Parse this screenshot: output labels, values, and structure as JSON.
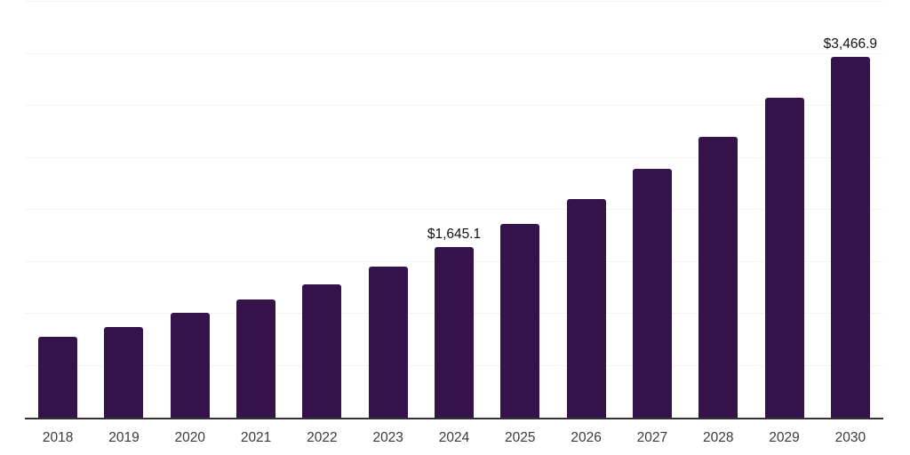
{
  "chart_data": {
    "type": "bar",
    "title": "",
    "xlabel": "",
    "ylabel": "",
    "categories": [
      "2018",
      "2019",
      "2020",
      "2021",
      "2022",
      "2023",
      "2024",
      "2025",
      "2026",
      "2027",
      "2028",
      "2029",
      "2030"
    ],
    "values": [
      775,
      870,
      1005,
      1133,
      1278,
      1450,
      1645.1,
      1860,
      2100,
      2390,
      2705,
      3075,
      3466.9
    ],
    "value_labels": {
      "2024": "$1,645.1",
      "2030": "$3,466.9"
    },
    "ylim": [
      0,
      4000
    ],
    "gridline_step": 500,
    "grid": true,
    "y_axis_labels_visible": false,
    "legend_position": "none"
  },
  "colors": {
    "bar": "#36124b",
    "gridline": "#f4f4f4",
    "axis_line": "#333333",
    "tick_label": "#3a3a3a",
    "value_label": "#111111",
    "background": "#ffffff"
  }
}
